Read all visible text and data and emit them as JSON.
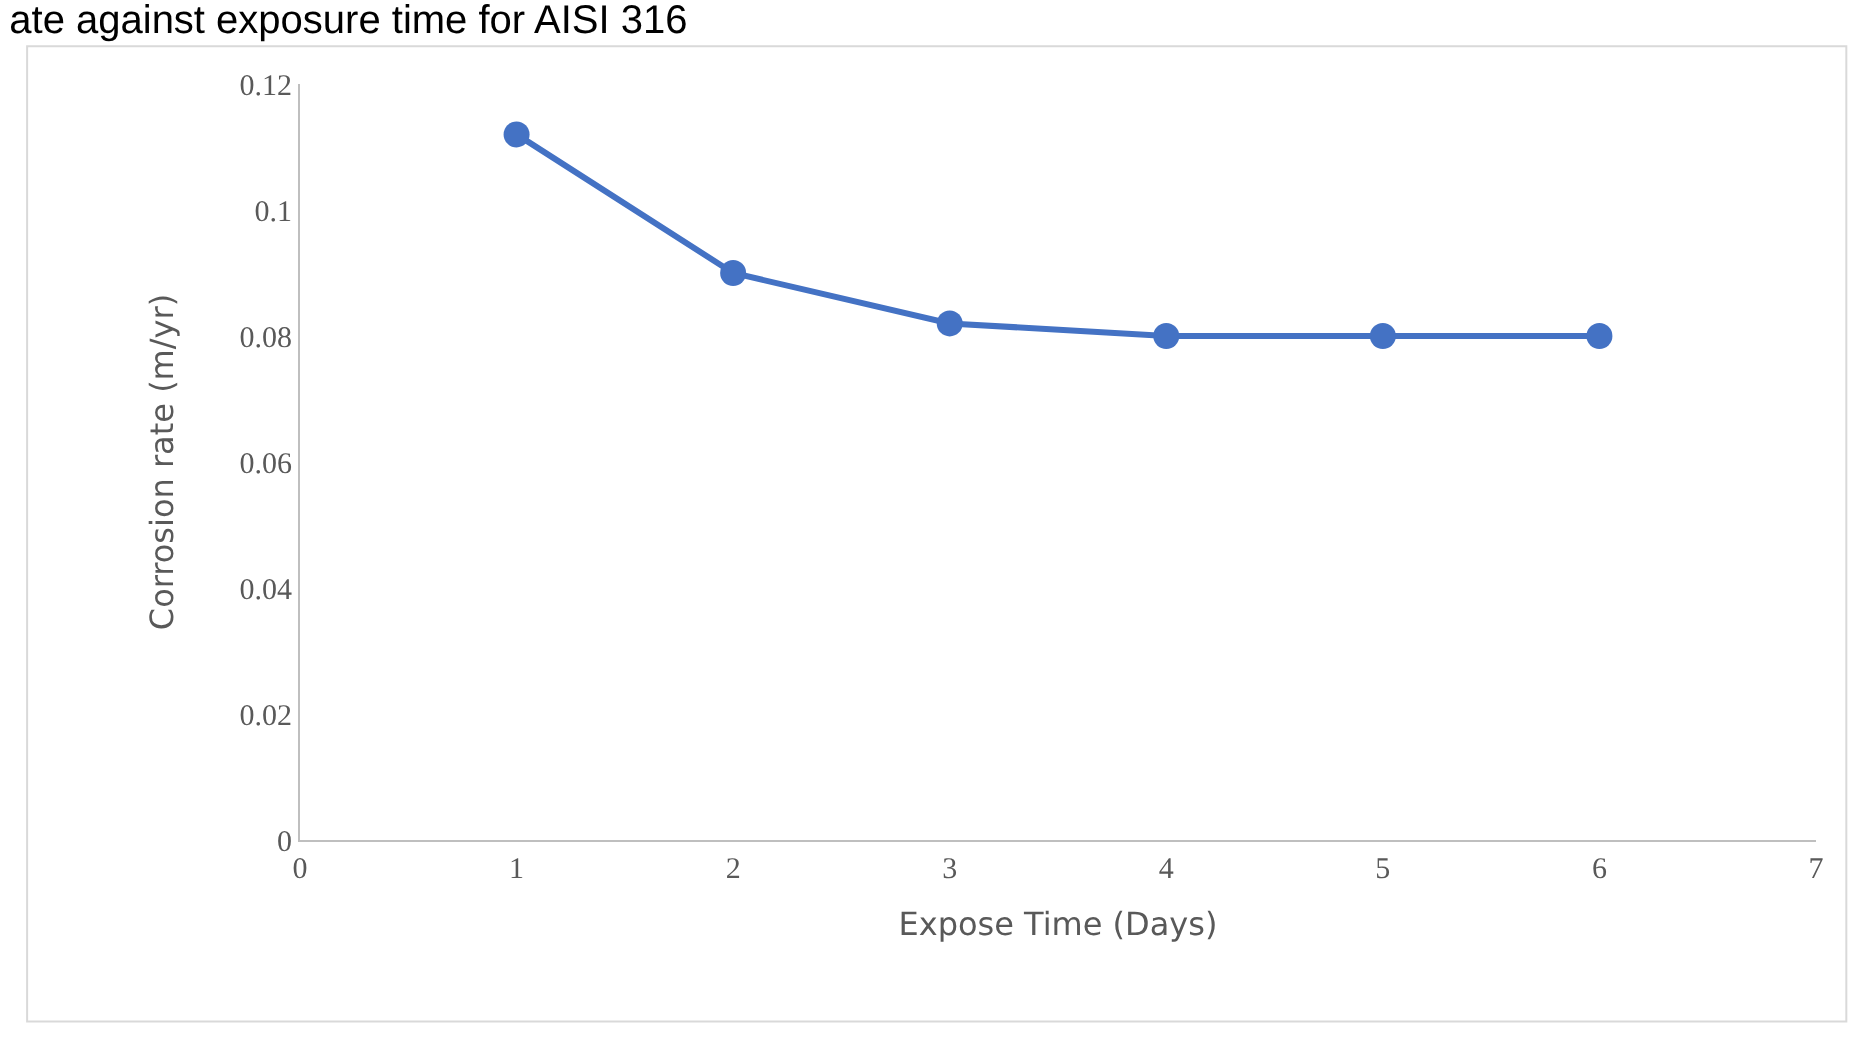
{
  "chart_data": {
    "type": "line",
    "title": "ate against exposure time for AISI 316",
    "xlabel": "Expose Time (Days)",
    "ylabel": "Corrosion rate (m/yr)",
    "x": [
      1,
      2,
      3,
      4,
      5,
      6
    ],
    "series": [
      {
        "color": "#4472c4",
        "values": [
          0.112,
          0.09,
          0.082,
          0.08,
          0.08,
          0.08
        ]
      }
    ],
    "xlim": [
      0,
      7
    ],
    "xticks": [
      0,
      1,
      2,
      3,
      4,
      5,
      6,
      7
    ],
    "ylim": [
      0,
      0.12
    ],
    "yticks": [
      0,
      0.02,
      0.04,
      0.06,
      0.08,
      0.1,
      0.12
    ],
    "grid": false,
    "marker": "circle",
    "line_style": "solid"
  }
}
